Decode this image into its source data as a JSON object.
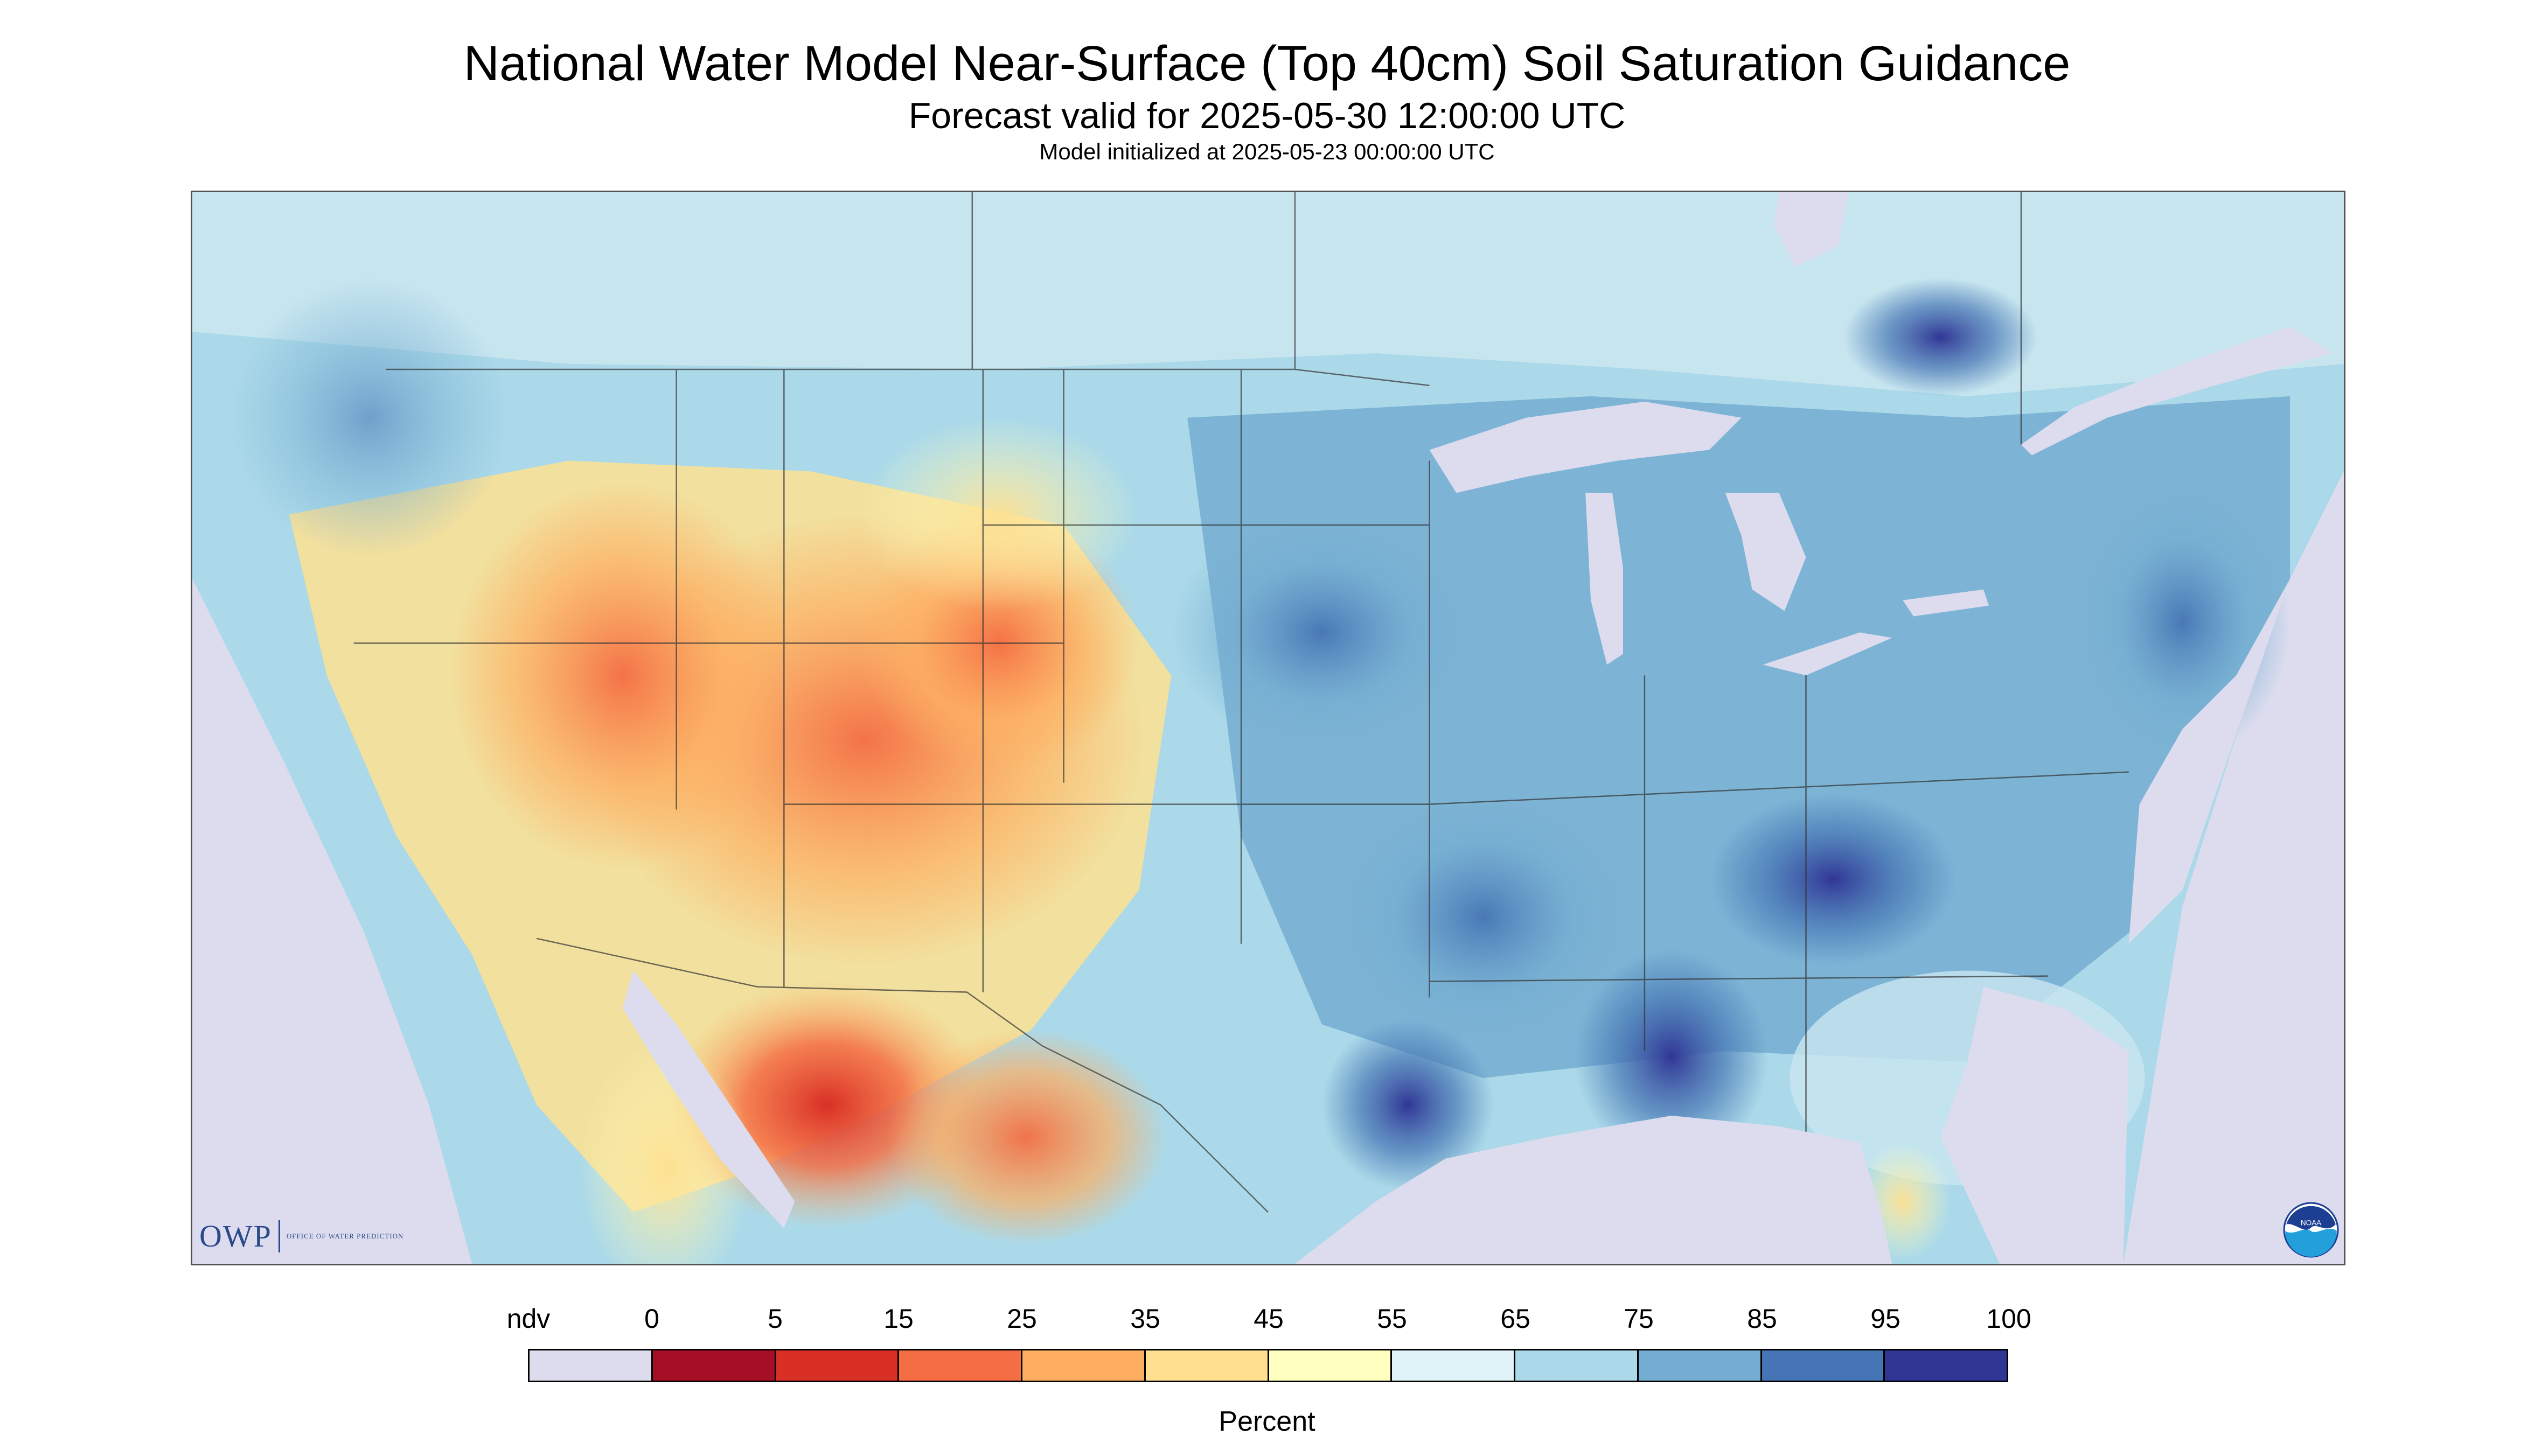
{
  "header": {
    "title": "National Water Model Near-Surface (Top 40cm) Soil Saturation Guidance",
    "subtitle": "Forecast valid for 2025-05-30 12:00:00 UTC",
    "init_line": "Model initialized at 2025-05-23 00:00:00 UTC"
  },
  "logos": {
    "owp_letters": "OWP",
    "owp_text": "OFFICE OF WATER PREDICTION",
    "noaa_text": "NOAA"
  },
  "legend": {
    "tick_labels": [
      "ndv",
      "0",
      "5",
      "15",
      "25",
      "35",
      "45",
      "55",
      "65",
      "75",
      "85",
      "95",
      "100"
    ],
    "colors": [
      "#dcdcee",
      "#a50f26",
      "#d93026",
      "#f46d43",
      "#fdae61",
      "#fee090",
      "#ffffbf",
      "#e0f3f8",
      "#abd9e9",
      "#74add1",
      "#4575b4",
      "#313695"
    ],
    "label": "Percent"
  },
  "colors": {
    "no_data": "#dcdcee",
    "background": "#ffffff",
    "boundary_lines": "#333333"
  }
}
